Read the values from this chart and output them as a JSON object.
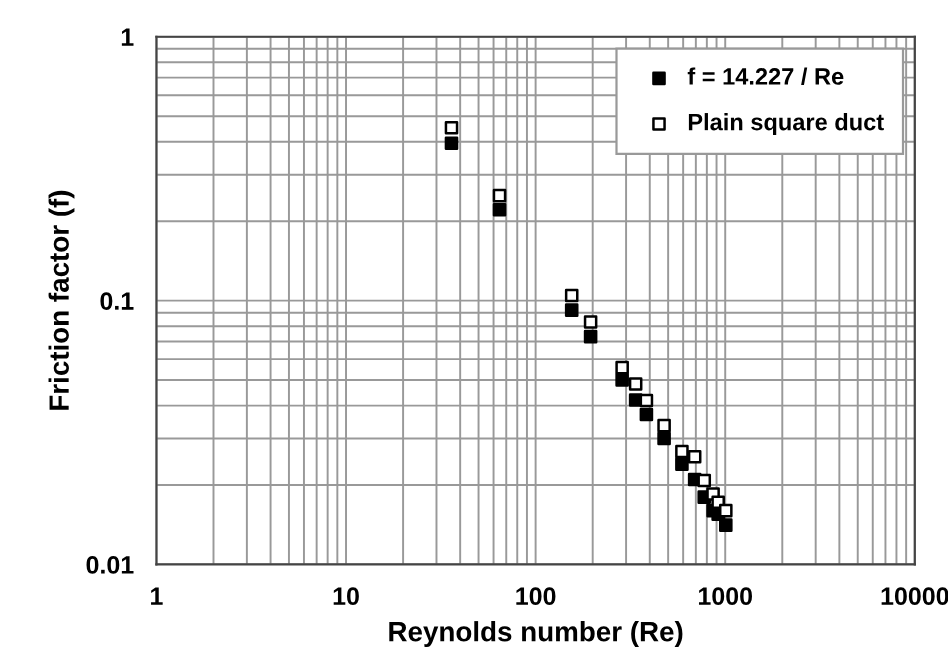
{
  "chart_data": {
    "type": "scatter",
    "xlabel": "Reynolds number (Re)",
    "ylabel": "Friction factor (f)",
    "log": "xy",
    "xlim": [
      1,
      10000
    ],
    "xticks": [
      1,
      10,
      100,
      1000,
      10000
    ],
    "ylim": [
      0.01,
      1
    ],
    "yticks": [
      0.01,
      0.1,
      1
    ],
    "grid": true,
    "legend": "top right",
    "marker": "square",
    "series": [
      {
        "name": "f = 14.227 / Re",
        "color": "#000000",
        "x": [
          36,
          64.5,
          155,
          195,
          286,
          337,
          384,
          476,
          591,
          690,
          775,
          863,
          918,
          1007
        ],
        "values": [
          0.395,
          0.221,
          0.092,
          0.073,
          0.05,
          0.042,
          0.037,
          0.03,
          0.024,
          0.021,
          0.018,
          0.016,
          0.0155,
          0.0141
        ]
      },
      {
        "name": "Plain square duct",
        "color": "#ffffff",
        "x": [
          36,
          64.5,
          155,
          195,
          286,
          337,
          384,
          476,
          591,
          690,
          775,
          863,
          918,
          1007
        ],
        "values": [
          0.452,
          0.25,
          0.1045,
          0.083,
          0.0557,
          0.0483,
          0.0418,
          0.0336,
          0.0268,
          0.0256,
          0.0208,
          0.0185,
          0.0172,
          0.016
        ]
      }
    ]
  }
}
